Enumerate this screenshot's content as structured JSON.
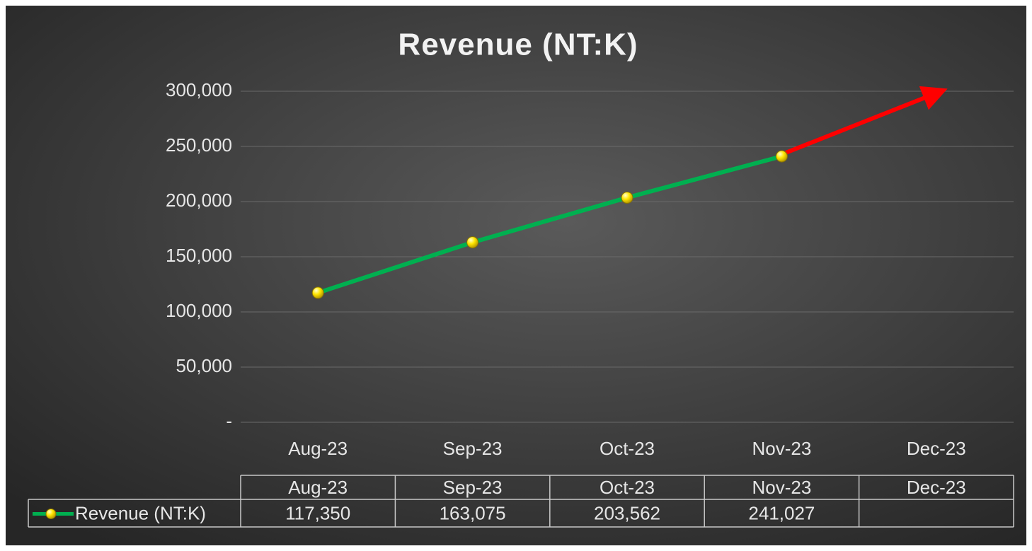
{
  "chart_data": {
    "type": "line",
    "title": "Revenue (NT:K)",
    "categories": [
      "Aug-23",
      "Sep-23",
      "Oct-23",
      "Nov-23",
      "Dec-23"
    ],
    "series": [
      {
        "name": "Revenue (NT:K)",
        "color": "#00b050",
        "marker_color": "#ffe600",
        "values": [
          117350,
          163075,
          203562,
          241027,
          null
        ],
        "value_labels": [
          "117,350",
          "163,075",
          "203,562",
          "241,027",
          null
        ]
      }
    ],
    "ylim": [
      0,
      300000
    ],
    "yticks": [
      {
        "value": 0,
        "label": "-"
      },
      {
        "value": 50000,
        "label": "50,000"
      },
      {
        "value": 100000,
        "label": "100,000"
      },
      {
        "value": 150000,
        "label": "150,000"
      },
      {
        "value": 200000,
        "label": "200,000"
      },
      {
        "value": 250000,
        "label": "250,000"
      },
      {
        "value": 300000,
        "label": "300,000"
      }
    ],
    "grid": true,
    "data_table": true
  }
}
